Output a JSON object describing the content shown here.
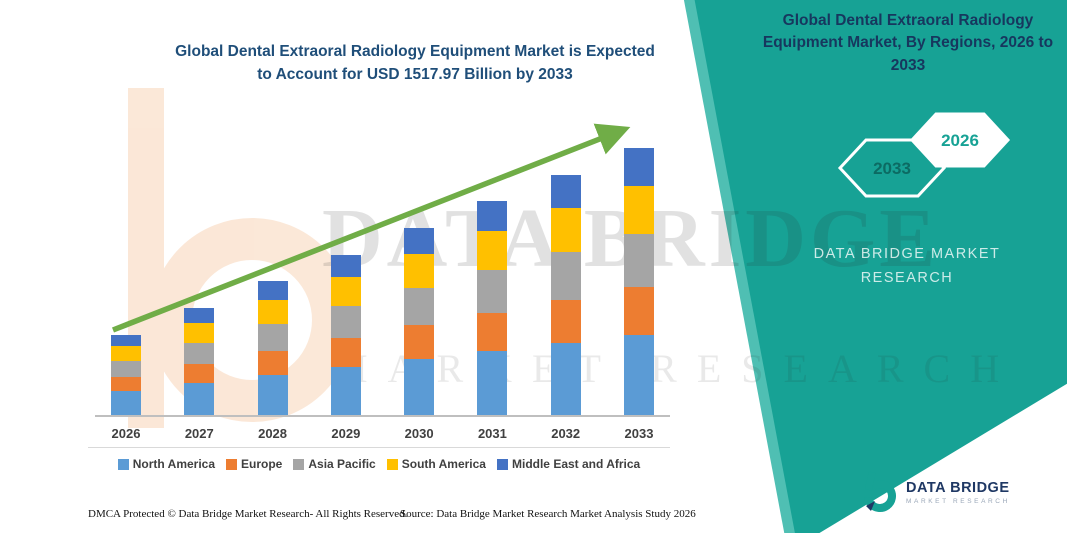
{
  "colors": {
    "teal": "#17A295",
    "teal_light": "#4FBFB3",
    "chart_title_blue": "#1F4E79",
    "panel_title_navy": "#17375E",
    "arrow_green": "#70AD47",
    "axis_gray": "#BFBFBF",
    "watermark_orange": "#F2B27E"
  },
  "chart": {
    "title_line1": "Global Dental Extraoral Radiology Equipment Market is Expected",
    "title_line2": "to Account for USD 1517.97 Billion by 2033"
  },
  "chart_data": {
    "type": "bar",
    "stacked": true,
    "title": "Global Dental Extraoral Radiology Equipment Market is Expected to Account for USD 1517.97 Billion by 2033",
    "unit": "USD Billion",
    "categories": [
      "2026",
      "2027",
      "2028",
      "2029",
      "2030",
      "2031",
      "2032",
      "2033"
    ],
    "ylim": [
      0,
      1600
    ],
    "grid": false,
    "legend_position": "bottom",
    "trend_arrow": true,
    "series": [
      {
        "name": "North America",
        "color": "#5B9BD5",
        "values": [
          136,
          182,
          228,
          273,
          319,
          364,
          410,
          455
        ]
      },
      {
        "name": "Europe",
        "color": "#ED7D31",
        "values": [
          82,
          109,
          137,
          164,
          191,
          219,
          246,
          273
        ]
      },
      {
        "name": "Asia Pacific",
        "color": "#A5A5A5",
        "values": [
          91,
          121,
          152,
          182,
          213,
          243,
          273,
          304
        ]
      },
      {
        "name": "South America",
        "color": "#FFC000",
        "values": [
          82,
          109,
          137,
          164,
          191,
          219,
          246,
          273
        ]
      },
      {
        "name": "Middle East and Africa",
        "color": "#4472C4",
        "values": [
          64,
          85,
          106,
          128,
          149,
          170,
          191,
          213
        ]
      }
    ]
  },
  "right_panel": {
    "title": "Global Dental Extraoral Radiology Equipment Market, By Regions, 2026 to 2033",
    "hexagon_back": "2033",
    "hexagon_front": "2026",
    "brand": "DATA BRIDGE MARKET RESEARCH"
  },
  "watermark": {
    "line1": "DATA BRIDGE",
    "line2": "MARKET RESEARCH"
  },
  "footer": {
    "dmca": "DMCA Protected © Data Bridge Market Research-  All Rights Reserved.",
    "source": "Source: Data Bridge Market Research  Market Analysis Study 2026"
  },
  "logo": {
    "title": "DATA BRIDGE",
    "subtitle": "MARKET RESEARCH"
  }
}
